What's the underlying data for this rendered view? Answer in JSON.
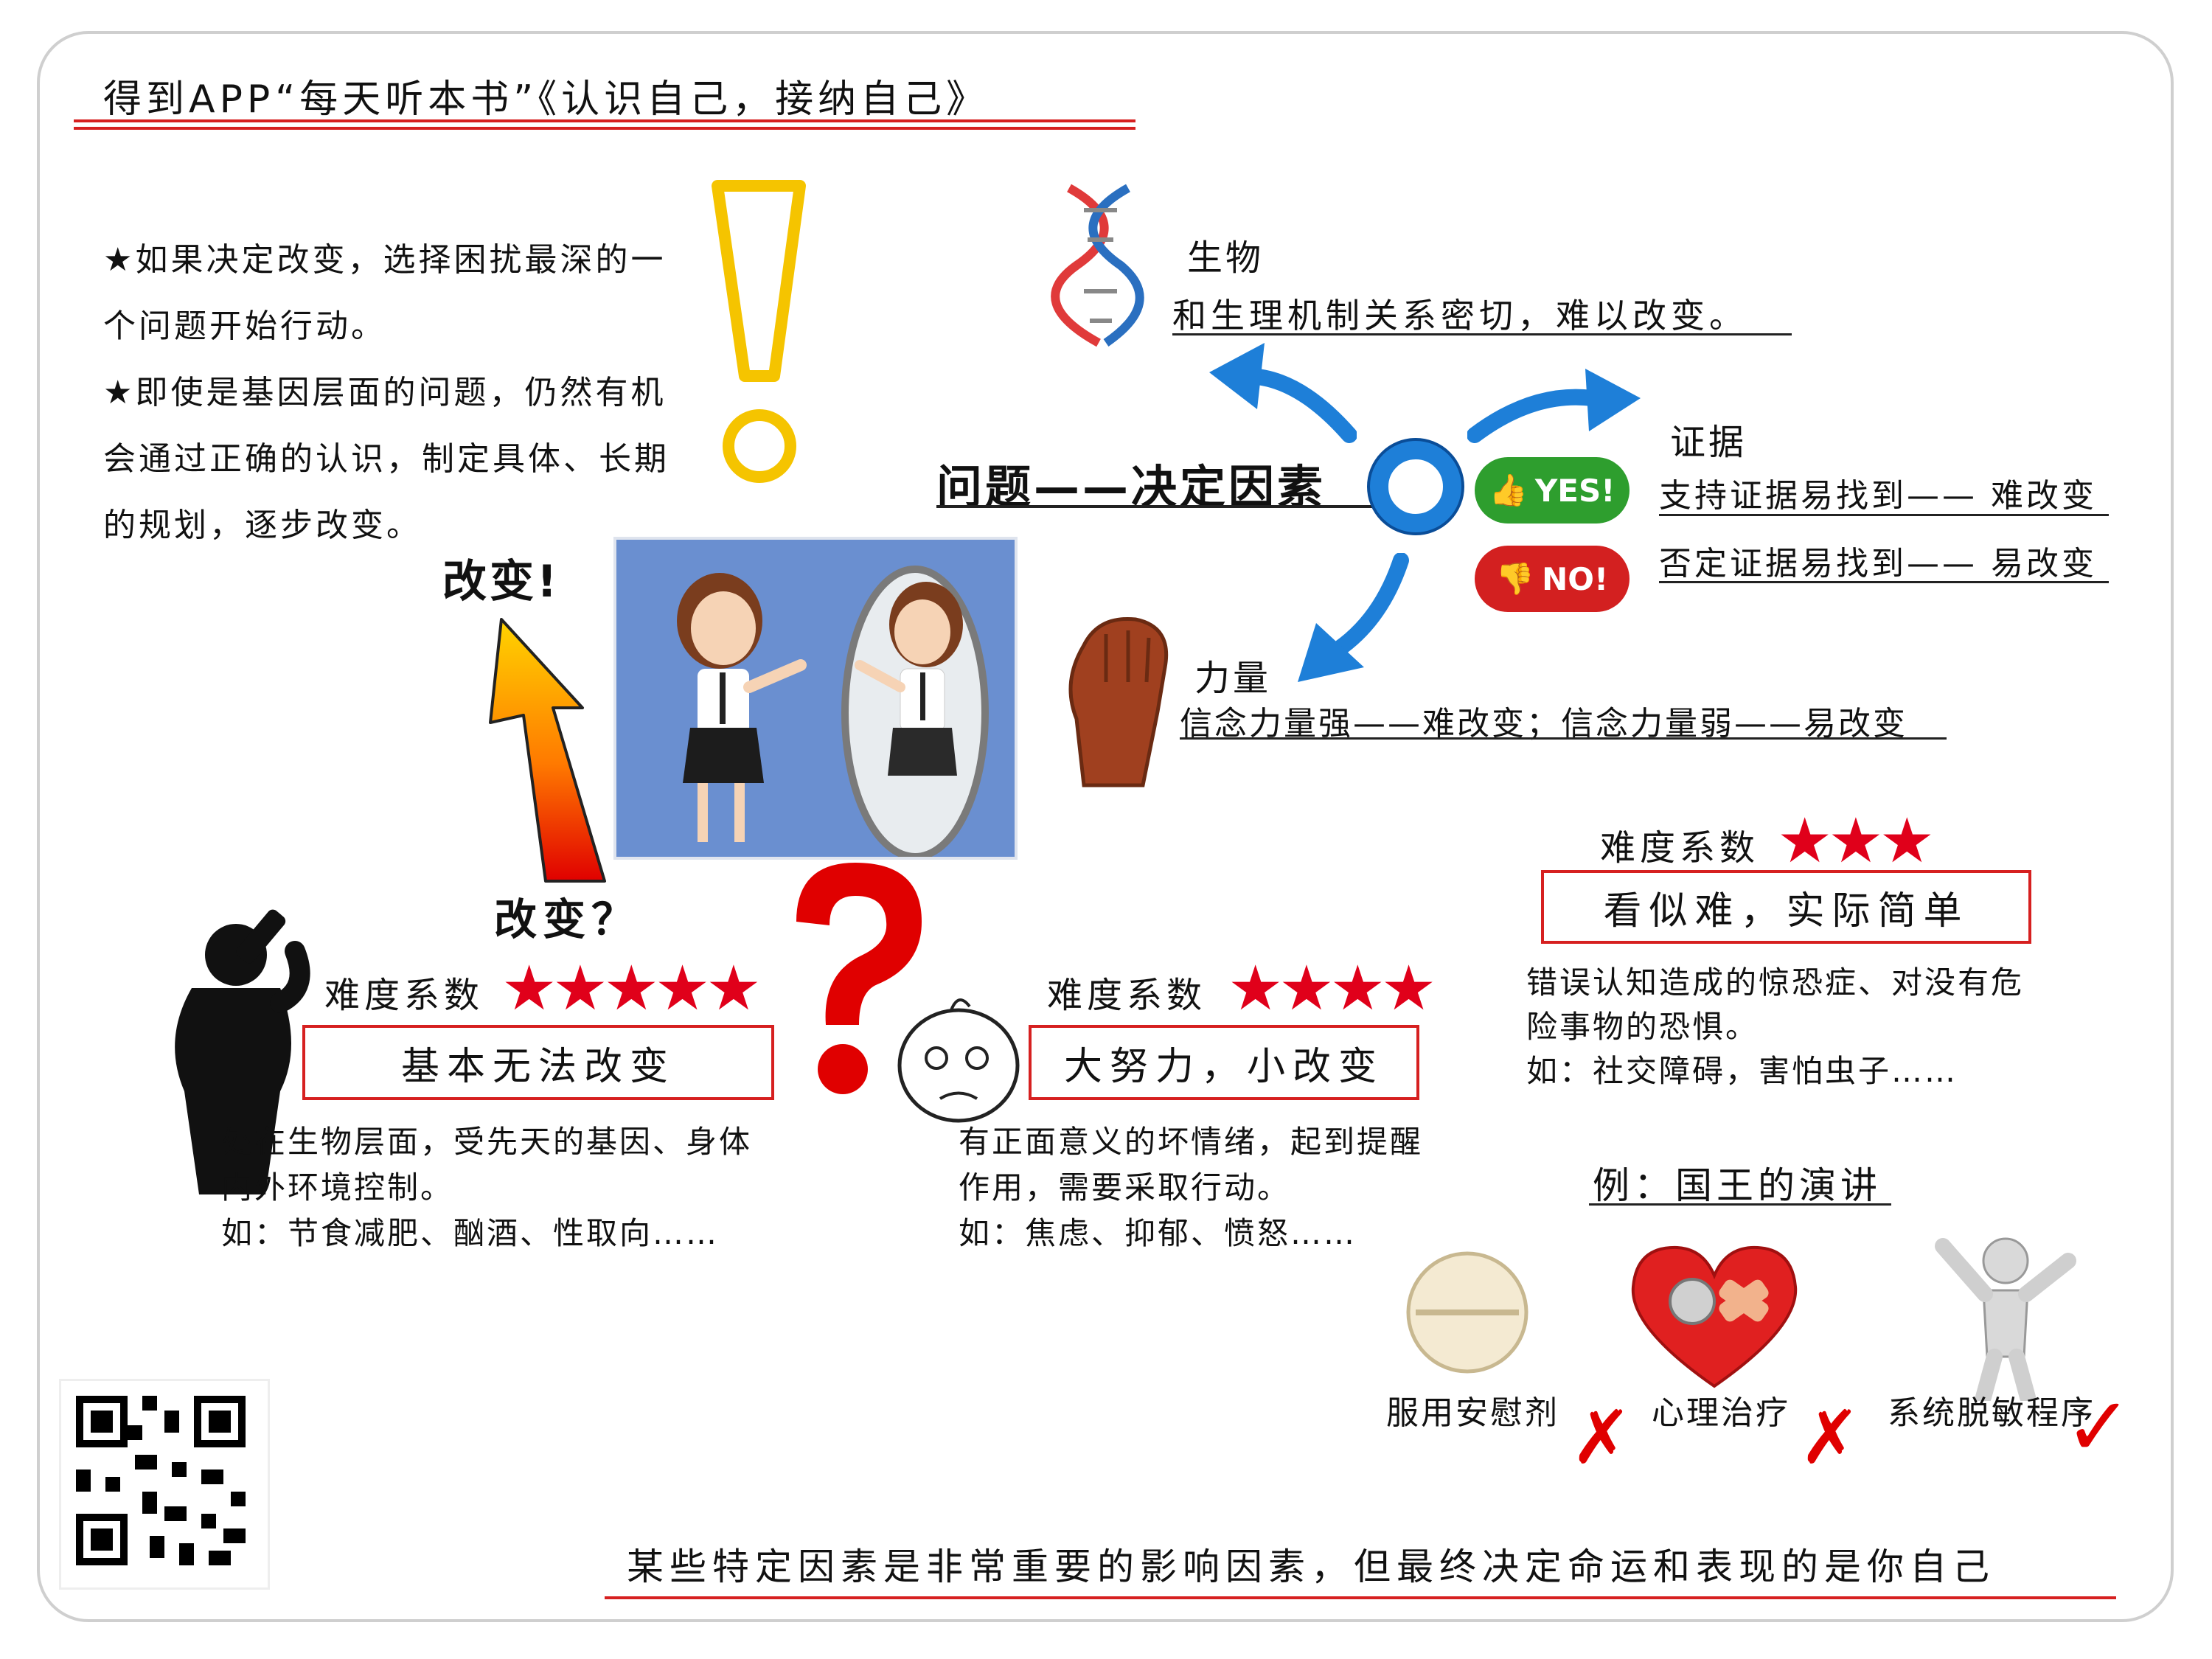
{
  "title": "得到APP“每天听本书”《认识自己，接纳自己》",
  "left_notes": {
    "line1": "★如果决定改变，选择困扰最深的一",
    "line2": "个问题开始行动。",
    "line3": "★即使是基因层面的问题，仍然有机",
    "line4": "会通过正确的认识，制定具体、长期",
    "line5": "的规划，逐步改变。"
  },
  "center": {
    "change_exclaim": "改变!",
    "change_question": "改变？",
    "problem_label": "问题——决定因素"
  },
  "biology": {
    "label": "生物",
    "desc": "和生理机制关系密切，难以改变。"
  },
  "evidence": {
    "label": "证据",
    "yes_badge": "YES!",
    "no_badge": "NO!",
    "support": "支持证据易找到—— 难改变",
    "deny": "否定证据易找到—— 易改变"
  },
  "power": {
    "label": "力量",
    "desc": "信念力量强——难改变；信念力量弱——易改变"
  },
  "levels": [
    {
      "difficulty_label": "难度系数",
      "stars": 5,
      "stars_text": "★★★★★",
      "summary": "基本无法改变",
      "desc1": "处在生物层面，受先天的基因、身体",
      "desc2": "内外环境控制。",
      "example": "如：节食减肥、酗酒、性取向……"
    },
    {
      "difficulty_label": "难度系数",
      "stars": 4,
      "stars_text": "★★★★",
      "summary": "大努力，小改变",
      "desc1": "有正面意义的坏情绪，起到提醒",
      "desc2": "作用，需要采取行动。",
      "example": "如：焦虑、抑郁、愤怒……"
    },
    {
      "difficulty_label": "难度系数",
      "stars": 3,
      "stars_text": "★★★",
      "summary": "看似难，实际简单",
      "desc1": "错误认知造成的惊恐症、对没有危",
      "desc2": "险事物的恐惧。",
      "example": "如：社交障碍，害怕虫子……"
    }
  ],
  "example_case": {
    "title": "例：国王的演讲",
    "options": [
      {
        "label": "服用安慰剂",
        "result": "✗"
      },
      {
        "label": "心理治疗",
        "result": "✗"
      },
      {
        "label": "系统脱敏程序",
        "result": "✓"
      }
    ]
  },
  "conclusion": "某些特定因素是非常重要的影响因素，但最终决定命运和表现的是你自己",
  "colors": {
    "accent_red": "#d62020",
    "star_red": "#e0001a",
    "arrow_blue": "#1e7fd8",
    "exclaim_yellow": "#f5c400",
    "photo_blue": "#6a8fd0"
  }
}
